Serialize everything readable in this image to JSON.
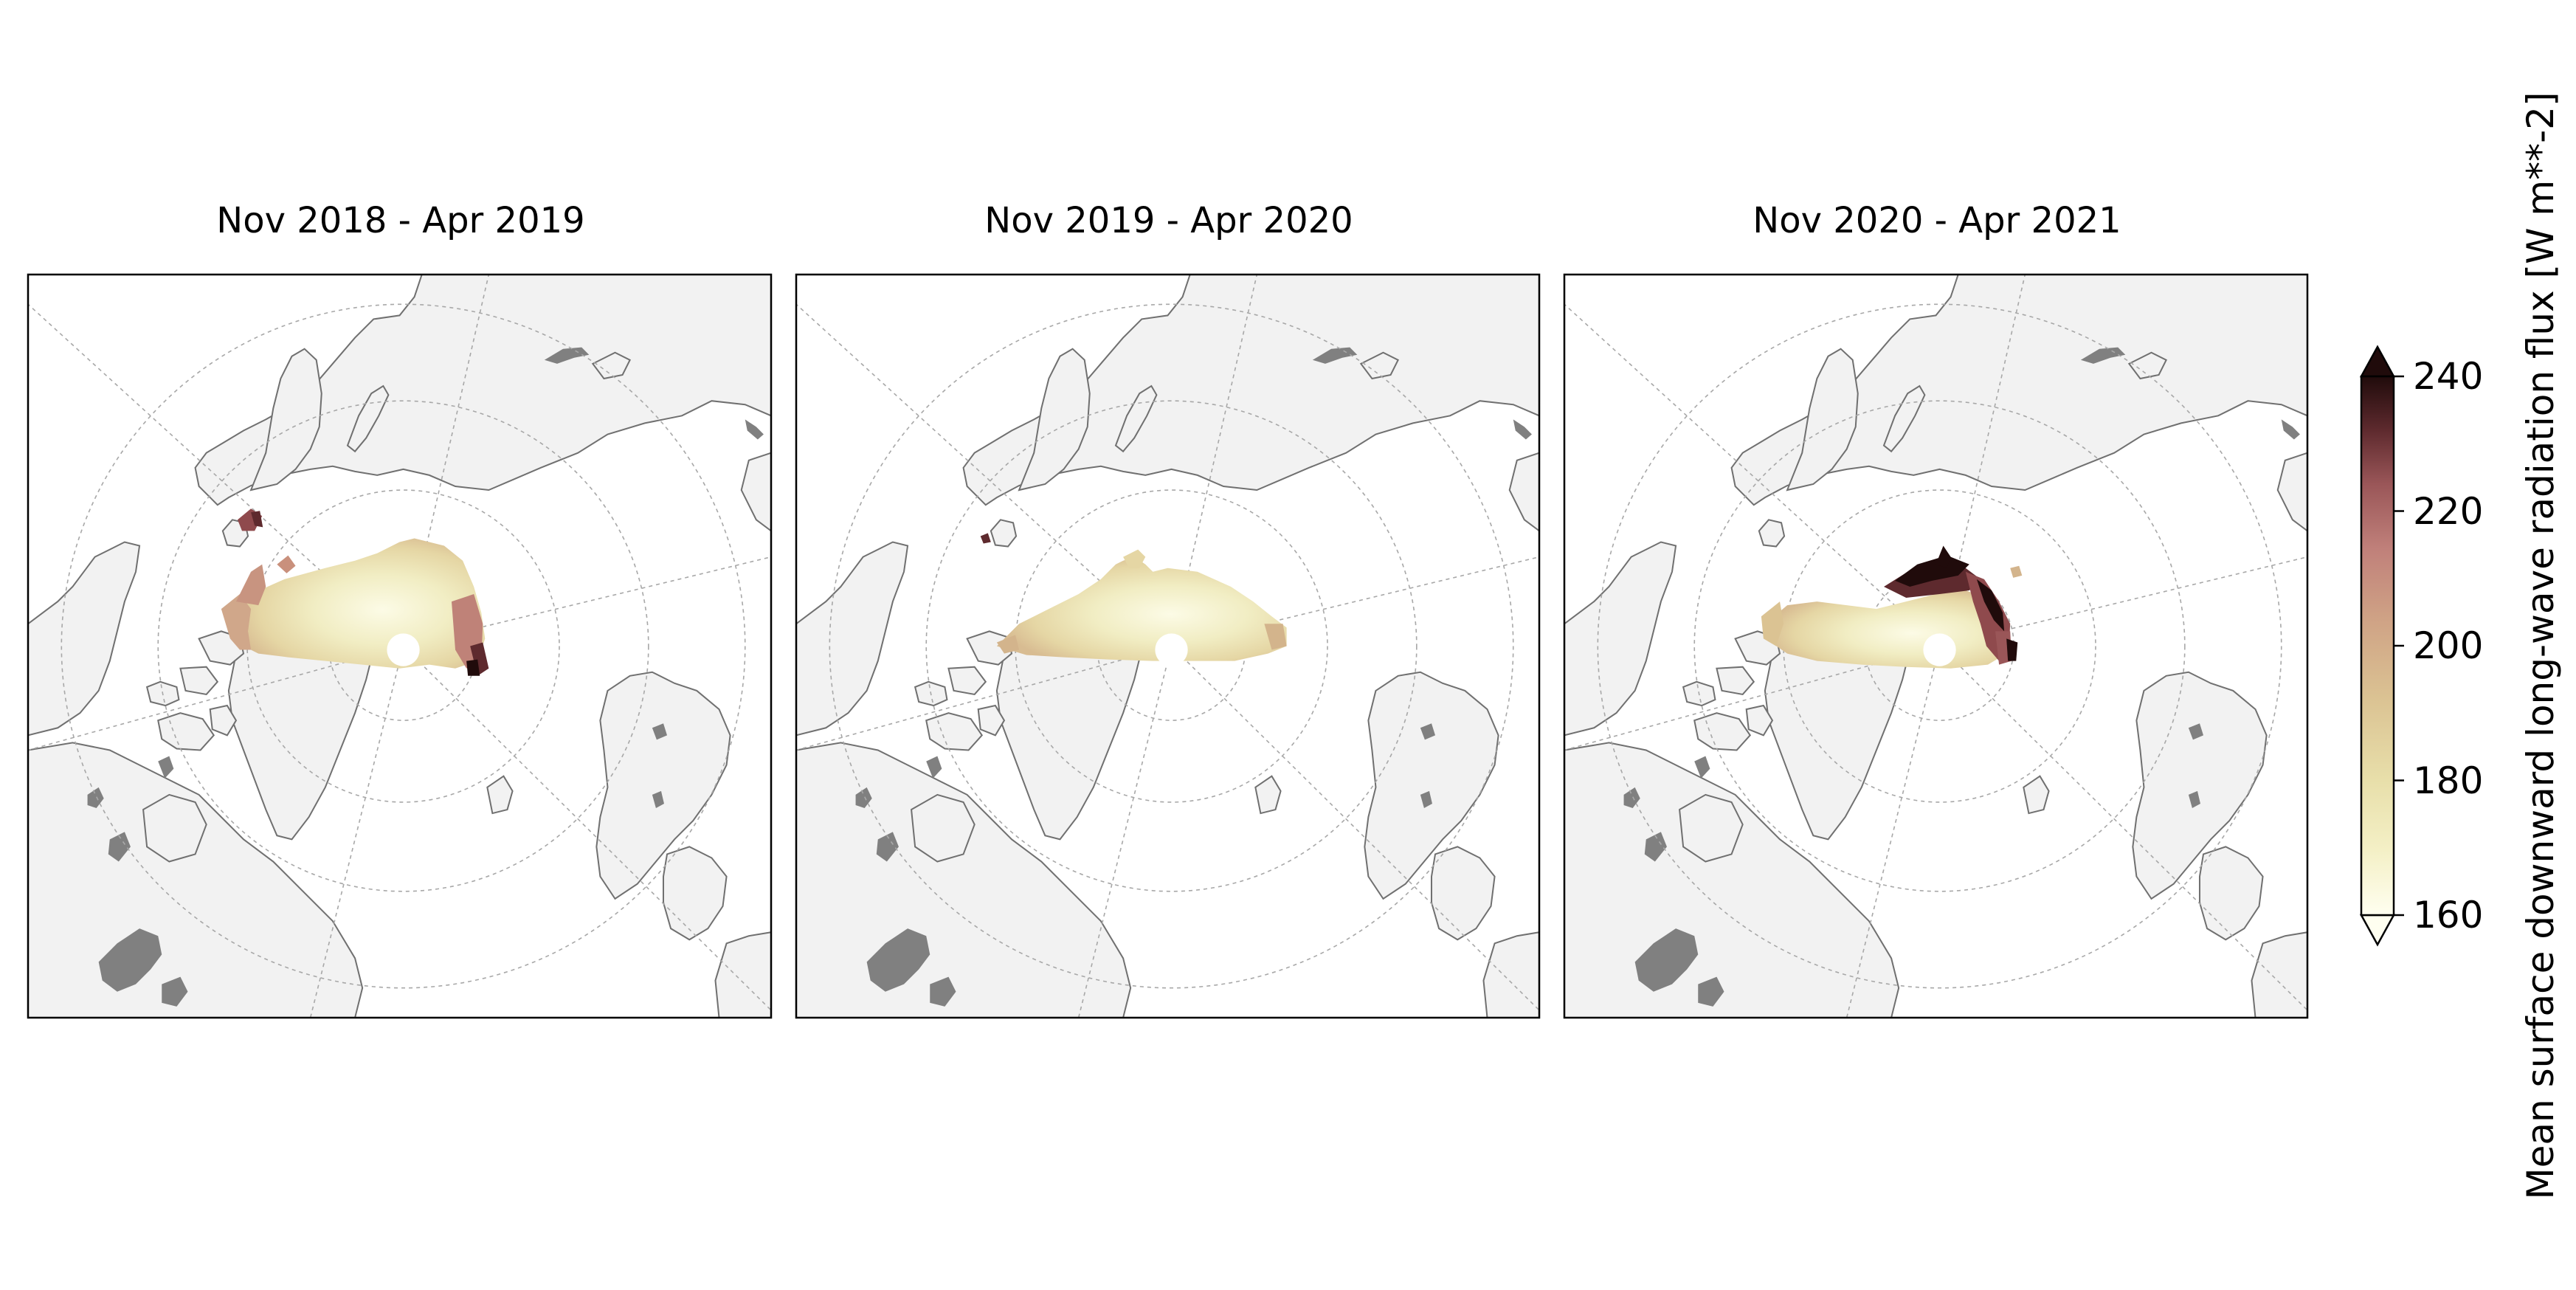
{
  "panels": [
    {
      "title": "Nov 2018 - Apr 2019"
    },
    {
      "title": "Nov 2019 - Apr 2020"
    },
    {
      "title": "Nov 2020 - Apr 2021"
    }
  ],
  "colorbar": {
    "label": "Mean surface downward long-wave radiation flux [W m**-2]",
    "ticks": [
      "160",
      "180",
      "200",
      "220",
      "240"
    ],
    "min": 160,
    "max": 240,
    "extend": "both",
    "colormap": [
      "#fffff0",
      "#f1edbf",
      "#e2d6a1",
      "#d3b48c",
      "#c9907c",
      "#b76e6a",
      "#8f4a4d",
      "#5e2a2e",
      "#200b0b"
    ]
  },
  "colors": {
    "ocean": "#ffffff",
    "land": "#f2f2f2",
    "lakes": "#808080",
    "coastline": "#707070",
    "gridlines": "#a8a8a8"
  }
}
